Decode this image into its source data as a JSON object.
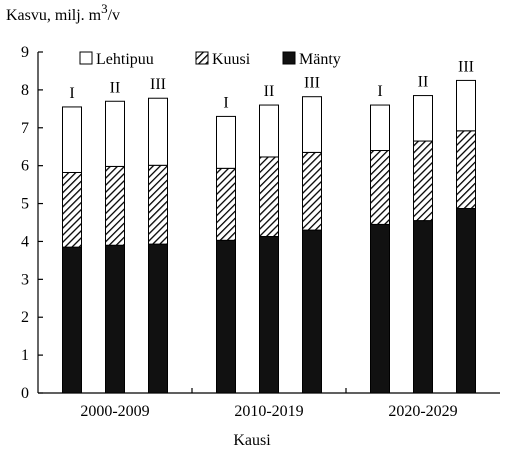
{
  "chart_data": {
    "type": "bar",
    "stacked": true,
    "ylabel": "Kasvu, milj. m",
    "ylabel_sup": "3",
    "ylabel_suffix": "/v",
    "xlabel": "Kausi",
    "ylim": [
      0,
      9
    ],
    "yticks": [
      0,
      1,
      2,
      3,
      4,
      5,
      6,
      7,
      8,
      9
    ],
    "groups": [
      "2000-2009",
      "2010-2019",
      "2020-2029"
    ],
    "scenarios": [
      "I",
      "II",
      "III"
    ],
    "legend_position": "top",
    "series": [
      {
        "name": "Mänty",
        "pattern": "solid",
        "values": [
          [
            3.85,
            3.9,
            3.93
          ],
          [
            4.03,
            4.13,
            4.3
          ],
          [
            4.45,
            4.55,
            4.87
          ]
        ]
      },
      {
        "name": "Kuusi",
        "pattern": "hatch",
        "values": [
          [
            1.97,
            2.08,
            2.08
          ],
          [
            1.9,
            2.1,
            2.05
          ],
          [
            1.95,
            2.1,
            2.05
          ]
        ]
      },
      {
        "name": "Lehtipuu",
        "pattern": "white",
        "values": [
          [
            1.73,
            1.72,
            1.77
          ],
          [
            1.37,
            1.37,
            1.47
          ],
          [
            1.2,
            1.2,
            1.33
          ]
        ]
      }
    ],
    "legend_order": [
      "Lehtipuu",
      "Kuusi",
      "Mänty"
    ]
  }
}
